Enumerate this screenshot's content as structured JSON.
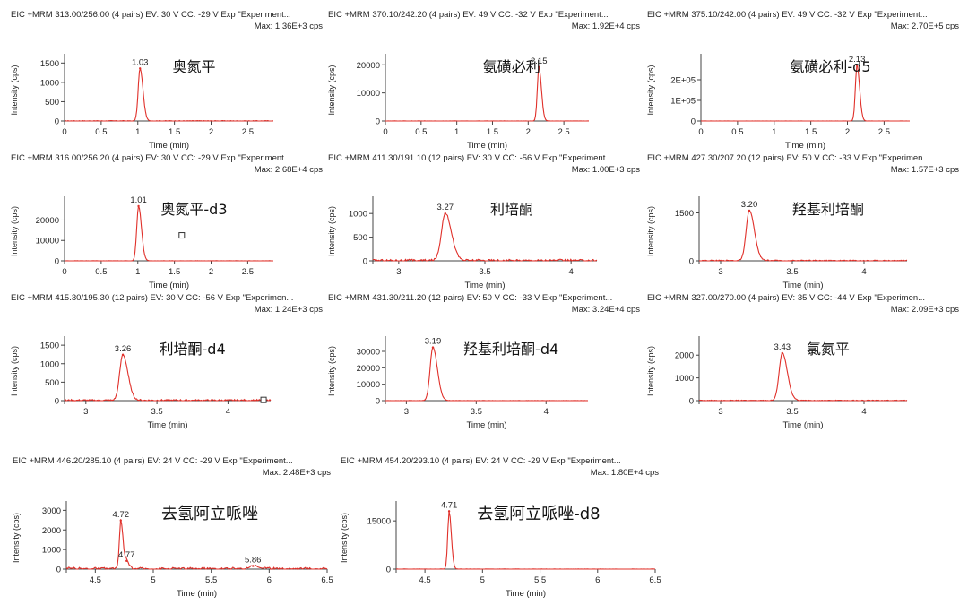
{
  "colors": {
    "trace": "#e0302a",
    "axis": "#444444",
    "text": "#222222"
  },
  "axis_text": {
    "xlabel": "Time (min)",
    "ylabel": "Intensity (cps)"
  },
  "chart_data": [
    {
      "type": "line",
      "title": "EIC +MRM 313.00/256.00 (4 pairs) EV: 30 V CC: -29 V Exp \"Experiment...",
      "max": "Max: 1.36E+3 cps",
      "compound": "奥氮平",
      "xlabel": "Time (min)",
      "ylabel": "Intensity (cps)",
      "xlim": [
        0,
        2.85
      ],
      "ylim": [
        0,
        1600
      ],
      "xticks": [
        0,
        0.5,
        1,
        1.5,
        2,
        2.5
      ],
      "xtick_labels": [
        "0",
        "0.5",
        "1",
        "1.5",
        "2",
        "2.5"
      ],
      "yticks": [
        0,
        500,
        1000,
        1500
      ],
      "ytick_labels": [
        "0",
        "500",
        "1000",
        "1500"
      ],
      "peaks": [
        {
          "rt": 1.03,
          "height": 1360,
          "width": 0.025,
          "label": "1.03"
        }
      ],
      "noise": 8
    },
    {
      "type": "line",
      "title": "EIC +MRM 370.10/242.20 (4 pairs) EV: 49 V CC: -32 V Exp \"Experiment...",
      "max": "Max: 1.92E+4 cps",
      "compound": "氨磺必利",
      "xlabel": "Time (min)",
      "ylabel": "Intensity (cps)",
      "xlim": [
        0,
        2.85
      ],
      "ylim": [
        0,
        22000
      ],
      "xticks": [
        0,
        0.5,
        1,
        1.5,
        2,
        2.5
      ],
      "xtick_labels": [
        "0",
        "0.5",
        "1",
        "1.5",
        "2",
        "2.5"
      ],
      "yticks": [
        0,
        10000,
        20000
      ],
      "ytick_labels": [
        "0",
        "10000",
        "20000"
      ],
      "peaks": [
        {
          "rt": 2.15,
          "height": 19200,
          "width": 0.022,
          "label": "2.15"
        }
      ],
      "noise": 40
    },
    {
      "type": "line",
      "title": "EIC +MRM 375.10/242.00 (4 pairs) EV: 49 V CC: -32 V Exp \"Experiment...",
      "max": "Max: 2.70E+5 cps",
      "compound": "氨磺必利-d5",
      "xlabel": "Time (min)",
      "ylabel": "Intensity (cps)",
      "xlim": [
        0,
        2.85
      ],
      "ylim": [
        0,
        300000
      ],
      "xticks": [
        0,
        0.5,
        1,
        1.5,
        2,
        2.5
      ],
      "xtick_labels": [
        "0",
        "0.5",
        "1",
        "1.5",
        "2",
        "2.5"
      ],
      "yticks": [
        0,
        100000,
        200000
      ],
      "ytick_labels": [
        "0",
        "1E+05",
        "2E+05"
      ],
      "peaks": [
        {
          "rt": 2.13,
          "height": 270000,
          "width": 0.022,
          "label": "2.13"
        }
      ],
      "noise": 300
    },
    {
      "type": "line",
      "title": "EIC +MRM 316.00/256.20 (4 pairs) EV: 30 V CC: -29 V Exp \"Experiment...",
      "max": "Max: 2.68E+4 cps",
      "compound": "奥氮平-d3",
      "xlabel": "Time (min)",
      "ylabel": "Intensity (cps)",
      "xlim": [
        0,
        2.85
      ],
      "ylim": [
        0,
        29000
      ],
      "xticks": [
        0,
        0.5,
        1,
        1.5,
        2,
        2.5
      ],
      "xtick_labels": [
        "0",
        "0.5",
        "1",
        "1.5",
        "2",
        "2.5"
      ],
      "yticks": [
        0,
        10000,
        20000
      ],
      "ytick_labels": [
        "0",
        "10000",
        "20000"
      ],
      "peaks": [
        {
          "rt": 1.01,
          "height": 26800,
          "width": 0.025,
          "label": "1.01"
        }
      ],
      "noise": 60,
      "marker": [
        1.6,
        12500
      ]
    },
    {
      "type": "line",
      "title": "EIC +MRM 411.30/191.10 (12 pairs) EV: 30 V CC: -56 V Exp \"Experiment...",
      "max": "Max: 1.00E+3 cps",
      "compound": "利培酮",
      "xlabel": "Time (min)",
      "ylabel": "Intensity (cps)",
      "xlim": [
        2.85,
        4.15
      ],
      "ylim": [
        0,
        1250
      ],
      "xticks": [
        3,
        3.5,
        4
      ],
      "xtick_labels": [
        "3",
        "3.5",
        "4"
      ],
      "yticks": [
        0,
        500,
        1000
      ],
      "ytick_labels": [
        "0",
        "500",
        "1000"
      ],
      "peaks": [
        {
          "rt": 3.27,
          "height": 1000,
          "width": 0.022,
          "label": "3.27"
        }
      ],
      "noise": 25
    },
    {
      "type": "line",
      "title": "EIC +MRM 427.30/207.20 (12 pairs) EV: 50 V CC: -33 V Exp \"Experimen...",
      "max": "Max: 1.57E+3 cps",
      "compound": "羟基利培酮",
      "xlabel": "Time (min)",
      "ylabel": "Intensity (cps)",
      "xlim": [
        2.85,
        4.3
      ],
      "ylim": [
        0,
        1850
      ],
      "xticks": [
        3,
        3.5,
        4
      ],
      "xtick_labels": [
        "3",
        "3.5",
        "4"
      ],
      "yticks": [
        0,
        1500
      ],
      "ytick_labels": [
        "0",
        "1500"
      ],
      "peaks": [
        {
          "rt": 3.2,
          "height": 1570,
          "width": 0.022,
          "label": "3.20"
        }
      ],
      "noise": 20
    },
    {
      "type": "line",
      "title": "EIC +MRM 415.30/195.30 (12 pairs) EV: 30 V CC: -56 V Exp \"Experimen...",
      "max": "Max: 1.24E+3 cps",
      "compound": "利培酮-d4",
      "xlabel": "Time (min)",
      "ylabel": "Intensity (cps)",
      "xlim": [
        2.85,
        4.3
      ],
      "ylim": [
        0,
        1600
      ],
      "xticks": [
        3,
        3.5,
        4
      ],
      "xtick_labels": [
        "3",
        "3.5",
        "4"
      ],
      "yticks": [
        0,
        500,
        1000,
        1500
      ],
      "ytick_labels": [
        "0",
        "500",
        "1000",
        "1500"
      ],
      "peaks": [
        {
          "rt": 3.26,
          "height": 1240,
          "width": 0.022,
          "label": "3.26"
        }
      ],
      "noise": 25,
      "marker": [
        4.25,
        20
      ]
    },
    {
      "type": "line",
      "title": "EIC +MRM 431.30/211.20 (12 pairs) EV: 50 V CC: -33 V Exp \"Experiment...",
      "max": "Max: 3.24E+4 cps",
      "compound": "羟基利培酮-d4",
      "xlabel": "Time (min)",
      "ylabel": "Intensity (cps)",
      "xlim": [
        2.85,
        4.3
      ],
      "ylim": [
        0,
        36000
      ],
      "xticks": [
        3,
        3.5,
        4
      ],
      "xtick_labels": [
        "3",
        "3.5",
        "4"
      ],
      "yticks": [
        0,
        10000,
        20000,
        30000
      ],
      "ytick_labels": [
        "0",
        "10000",
        "20000",
        "30000"
      ],
      "peaks": [
        {
          "rt": 3.19,
          "height": 32400,
          "width": 0.02,
          "label": "3.19"
        }
      ],
      "noise": 100
    },
    {
      "type": "line",
      "title": "EIC +MRM 327.00/270.00 (4 pairs) EV: 35 V CC: -44 V Exp \"Experimen...",
      "max": "Max: 2.09E+3 cps",
      "compound": "氯氮平",
      "xlabel": "Time (min)",
      "ylabel": "Intensity (cps)",
      "xlim": [
        2.85,
        4.3
      ],
      "ylim": [
        0,
        2600
      ],
      "xticks": [
        3,
        3.5,
        4
      ],
      "xtick_labels": [
        "3",
        "3.5",
        "4"
      ],
      "yticks": [
        0,
        1000,
        2000
      ],
      "ytick_labels": [
        "0",
        "1000",
        "2000"
      ],
      "peaks": [
        {
          "rt": 3.43,
          "height": 2090,
          "width": 0.022,
          "label": "3.43"
        }
      ],
      "noise": 20
    },
    {
      "type": "line",
      "title": "EIC +MRM 446.20/285.10 (4 pairs) EV: 24 V CC: -29 V Exp \"Experiment...",
      "max": "Max: 2.48E+3 cps",
      "compound": "去氢阿立哌唑",
      "xlabel": "Time (min)",
      "ylabel": "Intensity (cps)",
      "xlim": [
        4.25,
        6.5
      ],
      "ylim": [
        0,
        3200
      ],
      "xticks": [
        4.5,
        5,
        5.5,
        6,
        6.5
      ],
      "xtick_labels": [
        "4.5",
        "5",
        "5.5",
        "6",
        "6.5"
      ],
      "yticks": [
        0,
        1000,
        2000,
        3000
      ],
      "ytick_labels": [
        "0",
        "1000",
        "2000",
        "3000"
      ],
      "peaks": [
        {
          "rt": 4.72,
          "height": 2480,
          "width": 0.012,
          "label": "4.72"
        },
        {
          "rt": 4.77,
          "height": 420,
          "width": 0.012,
          "label": "4.77"
        },
        {
          "rt": 5.86,
          "height": 160,
          "width": 0.03,
          "label": "5.86"
        }
      ],
      "noise": 70
    },
    {
      "type": "line",
      "title": "EIC +MRM 454.20/293.10 (4 pairs) EV: 24 V CC: -29 V Exp \"Experiment...",
      "max": "Max: 1.80E+4 cps",
      "compound": "去氢阿立哌唑-d8",
      "xlabel": "Time (min)",
      "ylabel": "Intensity (cps)",
      "xlim": [
        4.25,
        6.5
      ],
      "ylim": [
        0,
        19500
      ],
      "xticks": [
        4.5,
        5,
        5.5,
        6,
        6.5
      ],
      "xtick_labels": [
        "4.5",
        "5",
        "5.5",
        "6",
        "6.5"
      ],
      "yticks": [
        0,
        15000
      ],
      "ytick_labels": [
        "0",
        "15000"
      ],
      "peaks": [
        {
          "rt": 4.71,
          "height": 18000,
          "width": 0.012,
          "label": "4.71"
        }
      ],
      "noise": 40
    }
  ]
}
